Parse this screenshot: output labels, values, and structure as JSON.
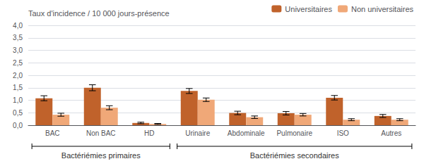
{
  "chart_data": {
    "type": "bar",
    "categories": [
      "BAC",
      "Non BAC",
      "HD",
      "Urinaire",
      "Abdominale",
      "Pulmonaire",
      "ISO",
      "Autres"
    ],
    "series": [
      {
        "name": "Universitaires",
        "color": "#C0622B",
        "values": [
          1.08,
          1.5,
          0.09,
          1.37,
          0.49,
          0.48,
          1.1,
          0.37
        ],
        "err_low": [
          0.1,
          0.12,
          0.03,
          0.1,
          0.07,
          0.07,
          0.09,
          0.06
        ],
        "err_high": [
          0.1,
          0.12,
          0.03,
          0.1,
          0.07,
          0.07,
          0.09,
          0.06
        ]
      },
      {
        "name": "Non universitaires",
        "color": "#F0A878",
        "values": [
          0.42,
          0.7,
          0.05,
          1.02,
          0.32,
          0.42,
          0.22,
          0.22
        ],
        "err_low": [
          0.06,
          0.08,
          0.02,
          0.07,
          0.05,
          0.05,
          0.04,
          0.04
        ],
        "err_high": [
          0.06,
          0.08,
          0.02,
          0.07,
          0.05,
          0.05,
          0.04,
          0.04
        ]
      }
    ],
    "groups": [
      {
        "label": "Bactériémies primaires",
        "categories": [
          "BAC",
          "Non BAC",
          "HD"
        ]
      },
      {
        "label": "Bactériémies secondaires",
        "categories": [
          "Urinaire",
          "Abdominale",
          "Pulmonaire",
          "ISO",
          "Autres"
        ]
      }
    ],
    "ylabel": "Taux d'incidence / 10 000 jours-présence",
    "ylim": [
      0,
      4.0
    ],
    "yticks": [
      {
        "value": 0.0,
        "label": "0,0"
      },
      {
        "value": 0.5,
        "label": "0,5"
      },
      {
        "value": 1.0,
        "label": "1,0"
      },
      {
        "value": 1.5,
        "label": "1,5"
      },
      {
        "value": 2.0,
        "label": "2,0"
      },
      {
        "value": 2.5,
        "label": "2,5"
      },
      {
        "value": 3.0,
        "label": "3,0"
      },
      {
        "value": 3.5,
        "label": "3,5"
      },
      {
        "value": 4.0,
        "label": "4,0"
      }
    ],
    "grid": true,
    "legend": "upper right"
  }
}
